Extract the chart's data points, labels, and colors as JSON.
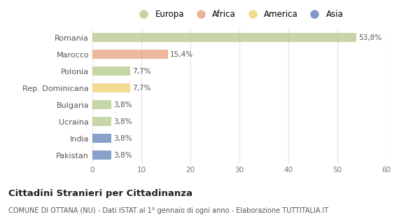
{
  "categories": [
    "Romania",
    "Marocco",
    "Polonia",
    "Rep. Dominicana",
    "Bulgaria",
    "Ucraina",
    "India",
    "Pakistan"
  ],
  "values": [
    53.8,
    15.4,
    7.7,
    7.7,
    3.8,
    3.8,
    3.8,
    3.8
  ],
  "labels": [
    "53,8%",
    "15,4%",
    "7,7%",
    "7,7%",
    "3,8%",
    "3,8%",
    "3,8%",
    "3,8%"
  ],
  "colors": [
    "#b5c98a",
    "#e8a07a",
    "#b5c98a",
    "#f0d070",
    "#b5c98a",
    "#b5c98a",
    "#6080bb",
    "#6080bb"
  ],
  "legend": [
    {
      "label": "Europa",
      "color": "#b5c98a"
    },
    {
      "label": "Africa",
      "color": "#e8a07a"
    },
    {
      "label": "America",
      "color": "#f0d070"
    },
    {
      "label": "Asia",
      "color": "#6080bb"
    }
  ],
  "xlim": [
    0,
    60
  ],
  "xticks": [
    0,
    10,
    20,
    30,
    40,
    50,
    60
  ],
  "title": "Cittadini Stranieri per Cittadinanza",
  "subtitle": "COMUNE DI OTTANA (NU) - Dati ISTAT al 1° gennaio di ogni anno - Elaborazione TUTTITALIA.IT",
  "background_color": "#ffffff",
  "grid_color": "#e8e8e8",
  "bar_height": 0.55,
  "label_fontsize": 7.5,
  "ytick_fontsize": 8,
  "xtick_fontsize": 7.5
}
